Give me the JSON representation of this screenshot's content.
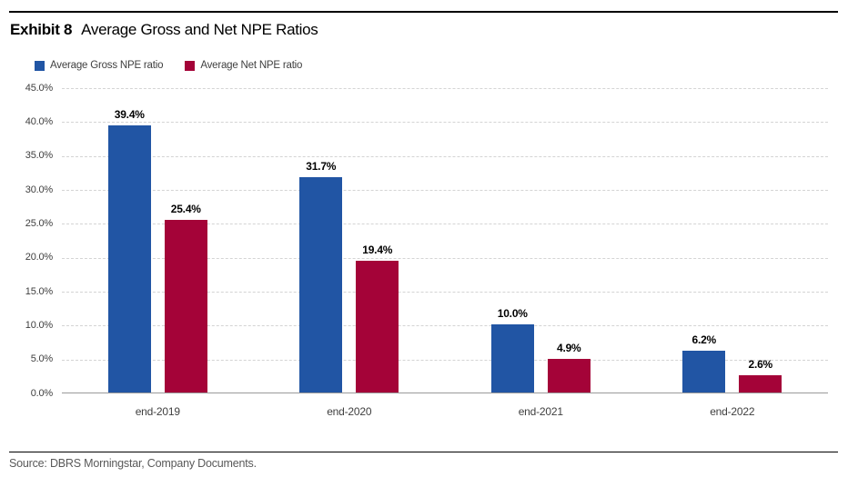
{
  "header": {
    "exhibit_label": "Exhibit 8",
    "title": "Average Gross and Net NPE Ratios"
  },
  "footer": {
    "source": "Source: DBRS Morningstar, Company Documents."
  },
  "colors": {
    "gross_blue": "#2155A4",
    "net_red": "#A40338",
    "gridline": "#D4D4D4",
    "baseline": "#9A9A9A",
    "axis_text": "#404040",
    "value_label_text": "#000000",
    "source_text": "#595959"
  },
  "chart_data": {
    "type": "bar",
    "title": "Average Gross and Net NPE Ratios",
    "categories": [
      "end-2019",
      "end-2020",
      "end-2021",
      "end-2022"
    ],
    "series": [
      {
        "name": "Average Gross NPE ratio",
        "color": "#2155A4",
        "values": [
          39.4,
          31.7,
          10.0,
          6.2
        ],
        "labels": [
          "39.4%",
          "31.7%",
          "10.0%",
          "6.2%"
        ]
      },
      {
        "name": "Average Net NPE ratio",
        "color": "#A40338",
        "values": [
          25.4,
          19.4,
          4.9,
          2.6
        ],
        "labels": [
          "25.4%",
          "19.4%",
          "4.9%",
          "2.6%"
        ]
      }
    ],
    "xlabel": "",
    "ylabel": "",
    "ylim": [
      0,
      45
    ],
    "ytick_step": 5,
    "ytick_labels_top_to_bottom": [
      "45.0%",
      "40.0%",
      "35.0%",
      "30.0%",
      "25.0%",
      "20.0%",
      "15.0%",
      "10.0%",
      "5.0%",
      "0.0%"
    ],
    "grid": "horizontal-dashed",
    "legend_position": "top-left"
  }
}
